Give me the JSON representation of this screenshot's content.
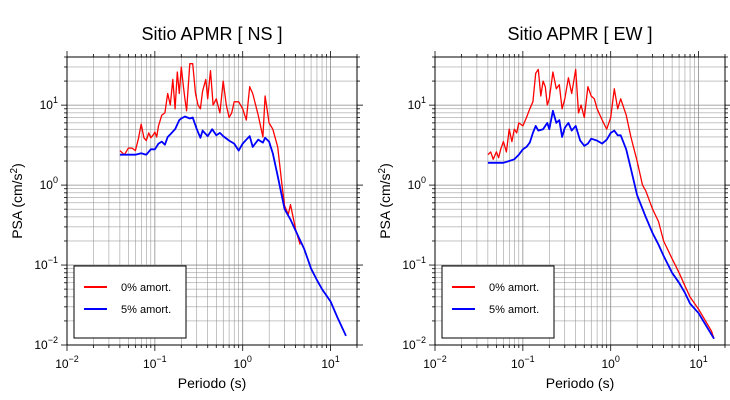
{
  "chart_data": [
    {
      "type": "line",
      "title": "Sitio APMR [ NS ]",
      "xlabel": "Periodo (s)",
      "ylabel_main": "PSA (cm/s",
      "ylabel_sup": "2",
      "ylabel_tail": ")",
      "x_scale": "log",
      "y_scale": "log",
      "xlim": [
        0.01,
        20
      ],
      "ylim": [
        0.01,
        40
      ],
      "x_ticks": [
        {
          "value": 0.01,
          "base": "10",
          "exp": "−2"
        },
        {
          "value": 0.1,
          "base": "10",
          "exp": "−1"
        },
        {
          "value": 1,
          "base": "10",
          "exp": "0"
        },
        {
          "value": 10,
          "base": "10",
          "exp": "1"
        }
      ],
      "y_ticks": [
        {
          "value": 0.01,
          "base": "10",
          "exp": "−2"
        },
        {
          "value": 0.1,
          "base": "10",
          "exp": "−1"
        },
        {
          "value": 1,
          "base": "10",
          "exp": "0"
        },
        {
          "value": 10,
          "base": "10",
          "exp": "1"
        }
      ],
      "grid": true,
      "legend_position": "bottom-left",
      "series": [
        {
          "name": "0% amort.",
          "color": "#ff0000",
          "x": [
            0.04,
            0.045,
            0.05,
            0.055,
            0.06,
            0.065,
            0.07,
            0.075,
            0.08,
            0.085,
            0.09,
            0.095,
            0.1,
            0.105,
            0.11,
            0.12,
            0.13,
            0.14,
            0.15,
            0.16,
            0.17,
            0.18,
            0.19,
            0.2,
            0.21,
            0.22,
            0.23,
            0.25,
            0.27,
            0.29,
            0.31,
            0.33,
            0.35,
            0.38,
            0.4,
            0.43,
            0.46,
            0.5,
            0.55,
            0.6,
            0.65,
            0.7,
            0.75,
            0.8,
            0.9,
            1.0,
            1.1,
            1.2,
            1.3,
            1.5,
            1.7,
            1.8,
            2.0,
            2.2,
            2.5,
            2.8,
            3.0,
            3.3,
            3.5,
            3.8,
            4.0,
            4.5
          ],
          "y": [
            2.7,
            2.4,
            2.9,
            2.9,
            2.7,
            3.8,
            5.8,
            3.9,
            3.6,
            4.5,
            3.9,
            4.2,
            4.6,
            4.0,
            5.5,
            7.5,
            8.0,
            14.0,
            10.0,
            21.0,
            9.0,
            26.0,
            14.0,
            30.0,
            18.0,
            12.0,
            8.5,
            33.0,
            33.0,
            14.0,
            10.0,
            9.0,
            15.0,
            21.0,
            12.0,
            27.0,
            10.0,
            12.0,
            8.0,
            20.0,
            10.0,
            7.0,
            8.0,
            11.0,
            11.0,
            9.0,
            6.5,
            17.0,
            14.0,
            7.5,
            4.0,
            13.0,
            6.0,
            5.0,
            3.0,
            1.0,
            0.55,
            0.43,
            0.57,
            0.37,
            0.28,
            0.18
          ]
        },
        {
          "name": "5% amort.",
          "color": "#0000ff",
          "x": [
            0.04,
            0.05,
            0.06,
            0.07,
            0.08,
            0.09,
            0.1,
            0.11,
            0.12,
            0.13,
            0.14,
            0.15,
            0.17,
            0.19,
            0.2,
            0.22,
            0.25,
            0.27,
            0.3,
            0.33,
            0.35,
            0.4,
            0.45,
            0.5,
            0.55,
            0.6,
            0.7,
            0.8,
            0.9,
            1.0,
            1.1,
            1.2,
            1.3,
            1.5,
            1.7,
            1.8,
            2.0,
            2.2,
            2.5,
            3.0,
            3.5,
            4.0,
            5.0,
            6.0,
            7.0,
            8.0,
            10.0,
            12.0,
            15.0
          ],
          "y": [
            2.4,
            2.4,
            2.4,
            2.5,
            2.4,
            2.8,
            2.8,
            3.3,
            3.5,
            3.2,
            4.0,
            4.3,
            5.0,
            6.5,
            6.8,
            7.2,
            6.8,
            7.0,
            5.0,
            3.9,
            4.8,
            4.1,
            5.0,
            4.2,
            4.5,
            4.1,
            3.6,
            3.3,
            2.7,
            3.3,
            3.7,
            4.1,
            3.0,
            3.7,
            3.4,
            3.9,
            3.5,
            2.5,
            1.3,
            0.5,
            0.37,
            0.27,
            0.16,
            0.09,
            0.065,
            0.05,
            0.035,
            0.022,
            0.013
          ]
        }
      ]
    },
    {
      "type": "line",
      "title": "Sitio APMR [ EW ]",
      "xlabel": "Periodo (s)",
      "ylabel_main": "PSA (cm/s",
      "ylabel_sup": "2",
      "ylabel_tail": ")",
      "x_scale": "log",
      "y_scale": "log",
      "xlim": [
        0.01,
        20
      ],
      "ylim": [
        0.01,
        40
      ],
      "x_ticks": [
        {
          "value": 0.01,
          "base": "10",
          "exp": "−2"
        },
        {
          "value": 0.1,
          "base": "10",
          "exp": "−1"
        },
        {
          "value": 1,
          "base": "10",
          "exp": "0"
        },
        {
          "value": 10,
          "base": "10",
          "exp": "1"
        }
      ],
      "y_ticks": [
        {
          "value": 0.01,
          "base": "10",
          "exp": "−2"
        },
        {
          "value": 0.1,
          "base": "10",
          "exp": "−1"
        },
        {
          "value": 1,
          "base": "10",
          "exp": "0"
        },
        {
          "value": 10,
          "base": "10",
          "exp": "1"
        }
      ],
      "grid": true,
      "legend_position": "bottom-left",
      "series": [
        {
          "name": "0% amort.",
          "color": "#ff0000",
          "x": [
            0.04,
            0.043,
            0.046,
            0.05,
            0.053,
            0.056,
            0.06,
            0.065,
            0.07,
            0.075,
            0.08,
            0.085,
            0.09,
            0.1,
            0.11,
            0.12,
            0.13,
            0.14,
            0.15,
            0.16,
            0.17,
            0.18,
            0.19,
            0.2,
            0.22,
            0.24,
            0.26,
            0.28,
            0.3,
            0.33,
            0.36,
            0.4,
            0.43,
            0.46,
            0.5,
            0.55,
            0.6,
            0.65,
            0.7,
            0.8,
            0.9,
            1.0,
            1.1,
            1.2,
            1.3,
            1.5,
            1.7,
            2.0,
            2.3,
            2.5,
            3.0,
            3.5,
            4.0,
            5.0,
            6.0,
            7.0,
            8.0,
            10.0,
            12.0,
            14.0,
            15.0
          ],
          "y": [
            2.4,
            2.6,
            2.1,
            2.6,
            2.2,
            2.8,
            3.5,
            2.6,
            5.0,
            3.5,
            5.0,
            4.5,
            6.0,
            5.5,
            7.0,
            9.0,
            11.0,
            25.0,
            28.0,
            13.0,
            20.0,
            17.0,
            10.0,
            12.0,
            26.0,
            16.0,
            18.0,
            9.0,
            12.0,
            22.0,
            14.0,
            28.0,
            8.0,
            10.0,
            7.0,
            17.0,
            13.0,
            12.0,
            9.0,
            6.5,
            5.0,
            7.0,
            16.0,
            9.0,
            12.0,
            7.5,
            4.0,
            2.0,
            1.0,
            0.85,
            0.5,
            0.35,
            0.2,
            0.12,
            0.08,
            0.055,
            0.04,
            0.028,
            0.02,
            0.015,
            0.012
          ]
        },
        {
          "name": "5% amort.",
          "color": "#0000ff",
          "x": [
            0.04,
            0.05,
            0.06,
            0.07,
            0.08,
            0.09,
            0.1,
            0.11,
            0.12,
            0.13,
            0.14,
            0.15,
            0.17,
            0.19,
            0.2,
            0.22,
            0.24,
            0.26,
            0.28,
            0.3,
            0.33,
            0.36,
            0.4,
            0.45,
            0.5,
            0.55,
            0.6,
            0.7,
            0.8,
            0.9,
            1.0,
            1.1,
            1.2,
            1.3,
            1.5,
            1.7,
            2.0,
            2.5,
            3.0,
            3.5,
            4.0,
            5.0,
            6.0,
            7.0,
            8.0,
            10.0,
            12.0,
            15.0
          ],
          "y": [
            1.9,
            1.9,
            1.9,
            2.0,
            2.1,
            2.4,
            2.8,
            3.0,
            3.4,
            4.5,
            5.5,
            4.8,
            5.0,
            6.0,
            5.0,
            8.5,
            6.0,
            6.5,
            4.0,
            5.2,
            6.0,
            4.8,
            5.5,
            3.6,
            3.1,
            3.3,
            3.8,
            3.6,
            3.3,
            3.7,
            4.5,
            4.8,
            4.2,
            4.2,
            2.8,
            1.6,
            0.75,
            0.4,
            0.25,
            0.18,
            0.13,
            0.08,
            0.06,
            0.045,
            0.033,
            0.025,
            0.018,
            0.012
          ]
        }
      ]
    }
  ]
}
